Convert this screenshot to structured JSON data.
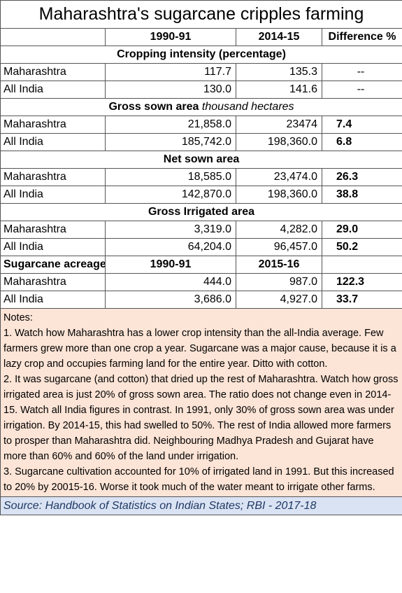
{
  "title": "Maharashtra's sugarcane cripples farming",
  "table": {
    "columns": [
      "1990-91",
      "2014-15",
      "Difference %"
    ],
    "sections": [
      {
        "heading": "Cropping intensity (percentage)",
        "rows": [
          [
            "Maharashtra",
            "117.7",
            "135.3",
            "--"
          ],
          [
            "All India",
            "130.0",
            "141.6",
            "--"
          ]
        ]
      },
      {
        "heading": "Gross sown area",
        "heading_note": "thousand hectares",
        "rows": [
          [
            "Maharashtra",
            "21,858.0",
            "23474",
            "7.4"
          ],
          [
            "All India",
            "185,742.0",
            "198,360.0",
            "6.8"
          ]
        ]
      },
      {
        "heading": "Net sown area",
        "rows": [
          [
            "Maharashtra",
            "18,585.0",
            "23,474.0",
            "26.3"
          ],
          [
            "All India",
            "142,870.0",
            "198,360.0",
            "38.8"
          ]
        ]
      },
      {
        "heading": "Gross Irrigated area",
        "rows": [
          [
            "Maharashtra",
            "3,319.0",
            "4,282.0",
            "29.0"
          ],
          [
            "All India",
            "64,204.0",
            "96,457.0",
            "50.2"
          ]
        ]
      },
      {
        "heading": "Sugarcane acreage",
        "columns": [
          "1990-91",
          "2015-16"
        ],
        "rows": [
          [
            "Maharashtra",
            "444.0",
            "987.0",
            "122.3"
          ],
          [
            "All India",
            "3,686.0",
            "4,927.0",
            "33.7"
          ]
        ]
      }
    ]
  },
  "notes": {
    "label": "Notes:",
    "items": [
      "1. Watch how Maharashtra has a lower crop intensity than the all-India average.  Few farmers grew more than one crop a year.  Sugarcane was a major cause, because it is a lazy crop and occupies farming land for the entire year. Ditto with cotton.",
      "2. It was sugarcane (and cotton) that dried up the rest of Maharashtra.  Watch how gross irrigated area is just 20% of gross sown area.  The ratio does not change even in 2014-15.  Watch all India figures in contrast.  In 1991, only 30% of gross sown area was under irrigation.  By 2014-15, this had swelled to 50%.  The rest of India allowed more farmers to prosper than Maharashtra did.  Neighbouring Madhya Pradesh and Gujarat have more than 60% and 60% of the land under irrigation.",
      "3. Sugarcane cultivation accounted for 10% of irrigated land in 1991.  But this increased to 20% by 20015-16.  Worse it took much of the water meant to irrigate other farms."
    ]
  },
  "source": "Source: Handbook of Statistics on Indian States; RBI - 2017-18"
}
